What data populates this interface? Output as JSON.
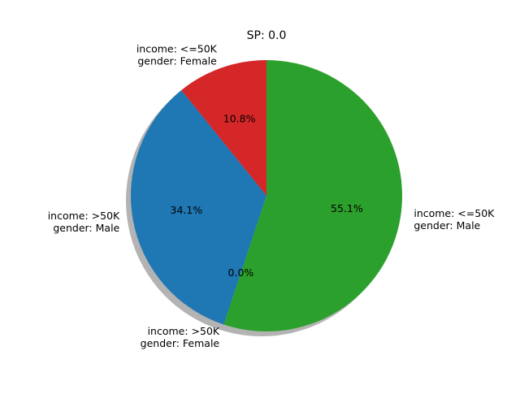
{
  "chart_data": {
    "type": "pie",
    "title": "SP: 0.0",
    "slices": [
      {
        "label_line1": "income: <=50K",
        "label_line2": "gender: Female",
        "value": 10.8,
        "pct_label": "10.8%",
        "color": "#d62728"
      },
      {
        "label_line1": "income: >50K",
        "label_line2": "gender: Male",
        "value": 34.1,
        "pct_label": "34.1%",
        "color": "#1f77b4"
      },
      {
        "label_line1": "income: >50K",
        "label_line2": "gender: Female",
        "value": 0.0,
        "pct_label": "0.0%",
        "color": "#ff7f0e"
      },
      {
        "label_line1": "income: <=50K",
        "label_line2": "gender: Male",
        "value": 55.1,
        "pct_label": "55.1%",
        "color": "#2ca02c"
      }
    ],
    "start_angle_deg": 90,
    "direction": "counterclockwise",
    "shadow": true,
    "shadow_color": "#808080"
  }
}
